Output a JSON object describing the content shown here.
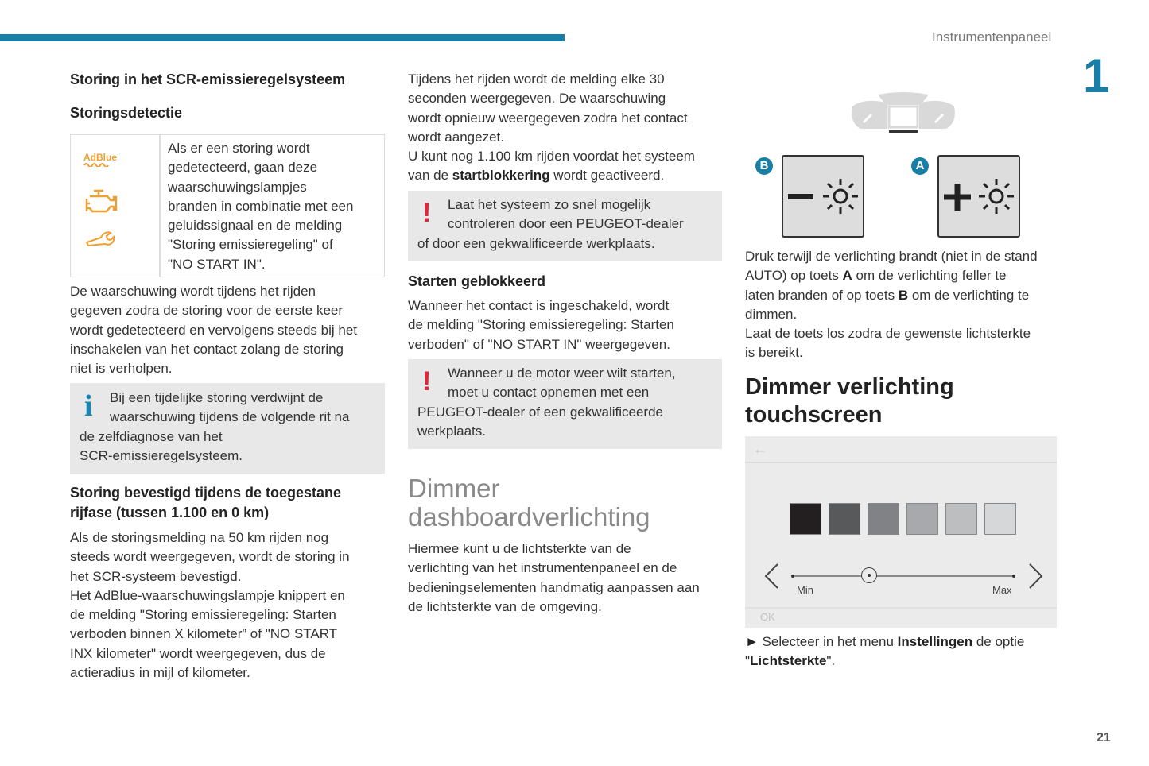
{
  "header": {
    "section": "Instrumentenpaneel",
    "chapter": "1",
    "page_number": "21",
    "accent_color": "#1a7fa6"
  },
  "col1": {
    "title": "Storing in het SCR-emissieregelsysteem",
    "subtitle": "Storingsdetectie",
    "table": {
      "icons": [
        "AdBlue",
        "engine-warning-icon",
        "service-wrench-icon"
      ],
      "adblue_label": "AdBlue",
      "lines": [
        "Als er een storing wordt",
        "gedetecteerd, gaan deze",
        "waarschuwingslampjes",
        "branden in combinatie met een",
        "geluidssignaal en de melding",
        "\"Storing emissieregeling\" of",
        "\"NO START IN\"."
      ]
    },
    "para1": [
      "De waarschuwing wordt tijdens het rijden",
      "gegeven zodra de storing voor de eerste keer",
      "wordt gedetecteerd en vervolgens steeds bij het",
      "inschakelen van het contact zolang de storing",
      "niet is verholpen."
    ],
    "info": [
      "Bij een tijdelijke storing verdwijnt de",
      "waarschuwing tijdens de volgende rit na",
      "de zelfdiagnose van het",
      "SCR-emissieregelsysteem."
    ],
    "heading2": [
      "Storing bevestigd tijdens de toegestane",
      "rijfase (tussen 1.100 en 0 km)"
    ],
    "para2": [
      "Als de storingsmelding na 50 km rijden nog",
      "steeds wordt weergegeven, wordt de storing in",
      "het SCR-systeem bevestigd.",
      "Het AdBlue-waarschuwingslampje knippert en",
      "de melding \"Storing emissieregeling: Starten",
      "verboden binnen X kilometer” of \"NO START",
      "INX kilometer\" wordt weergegeven, dus de",
      "actieradius in mijl of kilometer."
    ]
  },
  "col2": {
    "para1": [
      "Tijdens het rijden wordt de melding elke 30",
      "seconden weergegeven. De waarschuwing",
      "wordt opnieuw weergegeven zodra het contact",
      "wordt aangezet.",
      "U kunt nog 1.100 km rijden voordat het systeem"
    ],
    "para1_last": {
      "pre": "van de ",
      "bold": "startblokkering",
      "post": " wordt geactiveerd."
    },
    "warn1": [
      "Laat het systeem zo snel mogelijk",
      "controleren door een PEUGEOT-dealer",
      "of door een gekwalificeerde werkplaats."
    ],
    "heading": "Starten geblokkeerd",
    "para2": [
      "Wanneer het contact is ingeschakeld, wordt",
      "de melding \"Storing emissieregeling: Starten",
      "verboden\" of \"NO START IN\" weergegeven."
    ],
    "warn2": [
      "Wanneer u de motor weer wilt starten,",
      "moet u contact opnemen met een",
      "PEUGEOT-dealer of een gekwalificeerde",
      "werkplaats."
    ],
    "section_title": [
      "Dimmer",
      "dashboardverlichting"
    ],
    "para3": [
      "Hiermee kunt u de lichtsterkte van de",
      "verlichting van het instrumentenpaneel en de",
      "bedieningselementen handmatig aanpassen aan",
      "de lichtsterkte van de omgeving."
    ]
  },
  "col3": {
    "buttons": [
      {
        "badge": "B",
        "sign": "−"
      },
      {
        "badge": "A",
        "sign": "+"
      }
    ],
    "para1": [
      [
        {
          "t": "Druk terwijl de verlichting brandt (niet in de stand"
        }
      ],
      [
        {
          "t": "AUTO) op toets "
        },
        {
          "t": "A",
          "b": true
        },
        {
          "t": " om de verlichting feller te"
        }
      ],
      [
        {
          "t": "laten branden of op toets "
        },
        {
          "t": "B",
          "b": true
        },
        {
          "t": " om de verlichting te"
        }
      ],
      [
        {
          "t": "dimmen."
        }
      ],
      [
        {
          "t": "Laat de toets los zodra de gewenste lichtsterkte"
        }
      ],
      [
        {
          "t": "is bereikt."
        }
      ]
    ],
    "section_title": [
      "Dimmer verlichting",
      "touchscreen"
    ],
    "screen": {
      "min_label": "Min",
      "max_label": "Max",
      "ok_label": "OK",
      "slider_level": 0.35,
      "swatches": [
        "#231f20",
        "#58595b",
        "#808285",
        "#a7a9ac",
        "#bcbec0",
        "#d6d7d8"
      ]
    },
    "bullet": {
      "marker": "►",
      "pre": " Selecteer in het menu ",
      "bold1": "Instellingen",
      "mid": " de optie",
      "pre2": "\"",
      "bold2": "Lichtsterkte",
      "post2": "\"."
    }
  }
}
